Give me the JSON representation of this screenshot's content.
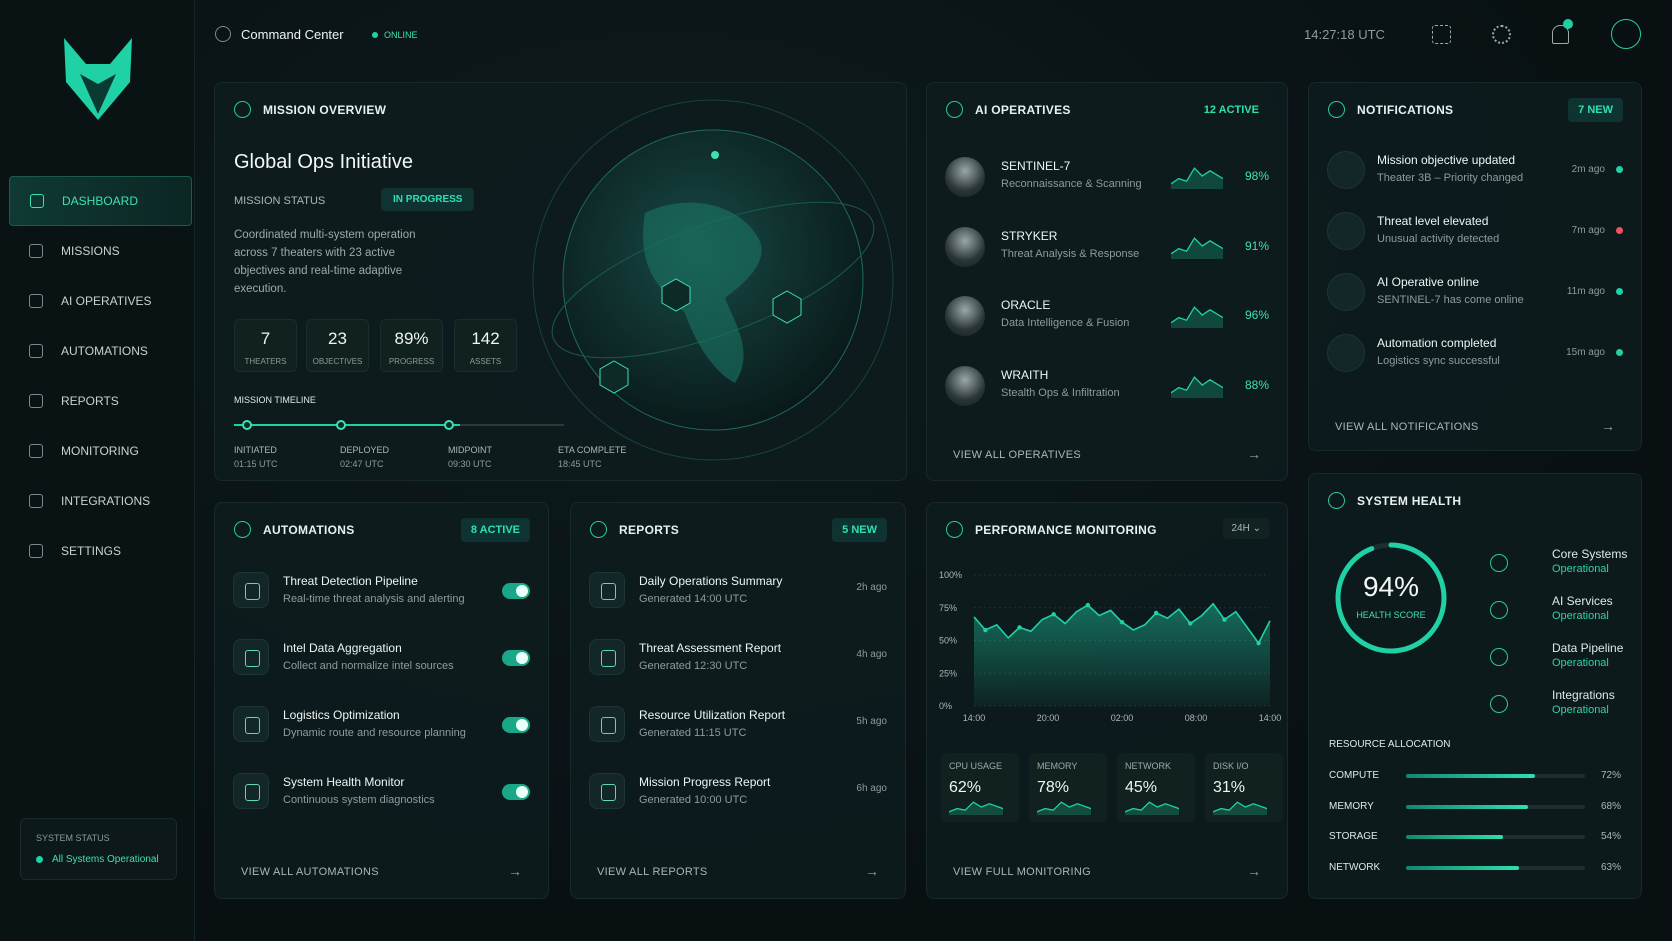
{
  "header": {
    "title": "Command Center",
    "status": "ONLINE",
    "time": "14:27:18 UTC"
  },
  "sidebar": {
    "nav": [
      "DASHBOARD",
      "MISSIONS",
      "AI OPERATIVES",
      "AUTOMATIONS",
      "REPORTS",
      "MONITORING",
      "INTEGRATIONS",
      "SETTINGS"
    ],
    "system_status": {
      "label": "SYSTEM STATUS",
      "value": "All Systems Operational"
    }
  },
  "mission": {
    "heading": "MISSION OVERVIEW",
    "title": "Global Ops Initiative",
    "status_label": "MISSION STATUS",
    "status": "IN PROGRESS",
    "description": "Coordinated multi-system operation across 7 theaters with 23 active objectives and real-time adaptive execution.",
    "stats": [
      {
        "value": "7",
        "label": "THEATERS"
      },
      {
        "value": "23",
        "label": "OBJECTIVES"
      },
      {
        "value": "89%",
        "label": "PROGRESS"
      },
      {
        "value": "142",
        "label": "ASSETS"
      }
    ],
    "timeline_label": "MISSION TIMELINE",
    "timeline": [
      {
        "label": "INITIATED",
        "time": "01:15 UTC"
      },
      {
        "label": "DEPLOYED",
        "time": "02:47 UTC"
      },
      {
        "label": "MIDPOINT",
        "time": "09:30 UTC"
      },
      {
        "label": "ETA COMPLETE",
        "time": "18:45 UTC"
      }
    ]
  },
  "operatives": {
    "heading": "AI OPERATIVES",
    "badge": "12 ACTIVE",
    "items": [
      {
        "name": "SENTINEL-7",
        "role": "Reconnaissance & Scanning",
        "score": "98%"
      },
      {
        "name": "STRYKER",
        "role": "Threat Analysis & Response",
        "score": "91%"
      },
      {
        "name": "ORACLE",
        "role": "Data Intelligence & Fusion",
        "score": "96%"
      },
      {
        "name": "WRAITH",
        "role": "Stealth Ops & Infiltration",
        "score": "88%"
      }
    ],
    "footer": "VIEW ALL OPERATIVES"
  },
  "notifications": {
    "heading": "NOTIFICATIONS",
    "badge": "7 NEW",
    "items": [
      {
        "title": "Mission objective updated",
        "detail": "Theater 3B – Priority changed",
        "time": "2m ago",
        "color": "#1fd1a5"
      },
      {
        "title": "Threat level elevated",
        "detail": "Unusual activity detected",
        "time": "7m ago",
        "color": "#f0525c"
      },
      {
        "title": "AI Operative online",
        "detail": "SENTINEL-7 has come online",
        "time": "11m ago",
        "color": "#1fd1a5"
      },
      {
        "title": "Automation completed",
        "detail": "Logistics sync successful",
        "time": "15m ago",
        "color": "#1fd1a5"
      }
    ],
    "footer": "VIEW ALL NOTIFICATIONS"
  },
  "automations": {
    "heading": "AUTOMATIONS",
    "badge": "8 ACTIVE",
    "items": [
      {
        "title": "Threat Detection Pipeline",
        "detail": "Real-time threat analysis and alerting"
      },
      {
        "title": "Intel Data Aggregation",
        "detail": "Collect and normalize intel sources"
      },
      {
        "title": "Logistics Optimization",
        "detail": "Dynamic route and resource planning"
      },
      {
        "title": "System Health Monitor",
        "detail": "Continuous system diagnostics"
      }
    ],
    "footer": "VIEW ALL AUTOMATIONS"
  },
  "reports": {
    "heading": "REPORTS",
    "badge": "5 NEW",
    "items": [
      {
        "title": "Daily Operations Summary",
        "detail": "Generated 14:00 UTC",
        "time": "2h ago"
      },
      {
        "title": "Threat Assessment Report",
        "detail": "Generated 12:30 UTC",
        "time": "4h ago"
      },
      {
        "title": "Resource Utilization Report",
        "detail": "Generated 11:15 UTC",
        "time": "5h ago"
      },
      {
        "title": "Mission Progress Report",
        "detail": "Generated 10:00 UTC",
        "time": "6h ago"
      }
    ],
    "footer": "VIEW ALL REPORTS"
  },
  "performance": {
    "heading": "PERFORMANCE MONITORING",
    "range": "24H",
    "chart": {
      "type": "area",
      "color": "#1fd1a5",
      "values": [
        68,
        58,
        62,
        52,
        60,
        57,
        66,
        70,
        63,
        72,
        77,
        69,
        73,
        64,
        58,
        62,
        71,
        67,
        74,
        63,
        69,
        78,
        66,
        72,
        60,
        48,
        65
      ],
      "ylim": [
        0,
        100
      ],
      "yticks": [
        {
          "value": 0,
          "label": "0%"
        },
        {
          "value": 25,
          "label": "25%"
        },
        {
          "value": 50,
          "label": "50%"
        },
        {
          "value": 75,
          "label": "75%"
        },
        {
          "value": 100,
          "label": "100%"
        }
      ],
      "xlabels": [
        "14:00",
        "20:00",
        "02:00",
        "08:00",
        "14:00"
      ],
      "grid": true
    },
    "metrics": [
      {
        "label": "CPU USAGE",
        "value": "62%"
      },
      {
        "label": "MEMORY",
        "value": "78%"
      },
      {
        "label": "NETWORK",
        "value": "45%"
      },
      {
        "label": "DISK I/O",
        "value": "31%"
      }
    ],
    "footer": "VIEW FULL MONITORING"
  },
  "health": {
    "heading": "SYSTEM HEALTH",
    "score": 94,
    "score_label": "94%",
    "score_caption": "HEALTH SCORE",
    "systems": [
      {
        "name": "Core Systems",
        "status": "Operational"
      },
      {
        "name": "AI Services",
        "status": "Operational"
      },
      {
        "name": "Data Pipeline",
        "status": "Operational"
      },
      {
        "name": "Integrations",
        "status": "Operational"
      }
    ],
    "allocation_label": "RESOURCE ALLOCATION",
    "allocation": {
      "names": [
        "COMPUTE",
        "MEMORY",
        "STORAGE",
        "NETWORK"
      ],
      "values": [
        72,
        68,
        54,
        63
      ],
      "value_labels": [
        "72%",
        "68%",
        "54%",
        "63%"
      ]
    }
  }
}
